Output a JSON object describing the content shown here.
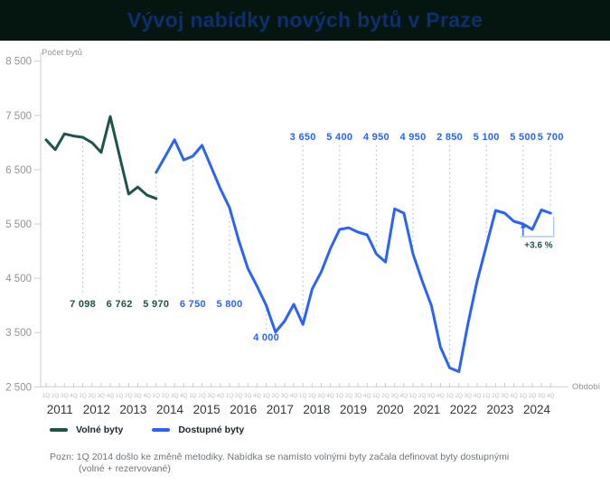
{
  "header": {
    "title": "Vývoj nabídky nových bytů v Praze"
  },
  "colors": {
    "header_bg": "#04160f",
    "title": "#0d2f6e",
    "volne": "#1e544a",
    "dostupne": "#2a63f5",
    "axis": "#c9cdd2",
    "axis_text": "#8f949b",
    "quarter_text": "#b9bec4",
    "year_text": "#33383e",
    "connector": "#b9bdc2",
    "bracket": "#aec9f7",
    "annotation_text": "#1e544a",
    "legend_text": "#1d242b",
    "footnote_text": "#6f747a"
  },
  "chart_data": {
    "type": "line",
    "title": "Vývoj nabídky nových bytů v Praze",
    "ylabel": "Počet bytů",
    "xlabel": "Období",
    "ylim": [
      2500,
      8500
    ],
    "ytick_labels": [
      "8 500",
      "7 500",
      "6 500",
      "5 500",
      "4 500",
      "3 500",
      "2 500"
    ],
    "years": [
      2011,
      2012,
      2013,
      2014,
      2015,
      2016,
      2017,
      2018,
      2019,
      2020,
      2021,
      2022,
      2023,
      2024
    ],
    "quarters": [
      "1Q",
      "2Q",
      "3Q",
      "4Q"
    ],
    "grid": false,
    "legend_position": "bottom-left",
    "series": [
      {
        "name": "Volné byty",
        "color_key": "volne",
        "start_index": 0,
        "values": [
          7050,
          6870,
          7160,
          7120,
          7098,
          7000,
          6820,
          7480,
          6762,
          6050,
          6180,
          6030,
          5970
        ]
      },
      {
        "name": "Dostupné byty",
        "color_key": "dostupne",
        "start_index": 12,
        "values": [
          6450,
          6750,
          7050,
          6680,
          6750,
          6950,
          6550,
          6150,
          5800,
          5200,
          4680,
          4350,
          4000,
          3510,
          3710,
          4020,
          3650,
          4300,
          4620,
          5050,
          5400,
          5430,
          5350,
          5300,
          4950,
          4800,
          5780,
          5700,
          4950,
          4450,
          4000,
          3230,
          2850,
          2780,
          3670,
          4450,
          5100,
          5750,
          5700,
          5550,
          5500,
          5400,
          5760,
          5700
        ]
      }
    ],
    "point_labels": [
      {
        "index": 4,
        "series": "volne",
        "label": "7 098",
        "position": "mid"
      },
      {
        "index": 8,
        "series": "volne",
        "label": "6 762",
        "position": "mid"
      },
      {
        "index": 12,
        "series": "volne",
        "label": "5 970",
        "position": "mid"
      },
      {
        "index": 16,
        "series": "dostupne",
        "label": "6 750",
        "position": "mid"
      },
      {
        "index": 20,
        "series": "dostupne",
        "label": "5 800",
        "position": "mid"
      },
      {
        "index": 24,
        "series": "dostupne",
        "label": "4 000",
        "position": "low"
      },
      {
        "index": 28,
        "series": "dostupne",
        "label": "3 650",
        "position": "above"
      },
      {
        "index": 32,
        "series": "dostupne",
        "label": "5 400",
        "position": "above"
      },
      {
        "index": 36,
        "series": "dostupne",
        "label": "4 950",
        "position": "above"
      },
      {
        "index": 40,
        "series": "dostupne",
        "label": "4 950",
        "position": "above"
      },
      {
        "index": 44,
        "series": "dostupne",
        "label": "2 850",
        "position": "above"
      },
      {
        "index": 48,
        "series": "dostupne",
        "label": "5 100",
        "position": "above"
      },
      {
        "index": 52,
        "series": "dostupne",
        "label": "5 500",
        "position": "above"
      },
      {
        "index": 55,
        "series": "dostupne",
        "label": "5 700",
        "position": "above"
      }
    ],
    "annotation": {
      "text": "+3.6 %",
      "from_index": 52,
      "to_index": 55
    }
  },
  "footnote": {
    "line1": "Pozn: 1Q 2014 došlo ke změně metodiky. Nabídka se namísto volnými byty začala definovat byty dostupnými",
    "line2": "(volné + rezervované)"
  }
}
